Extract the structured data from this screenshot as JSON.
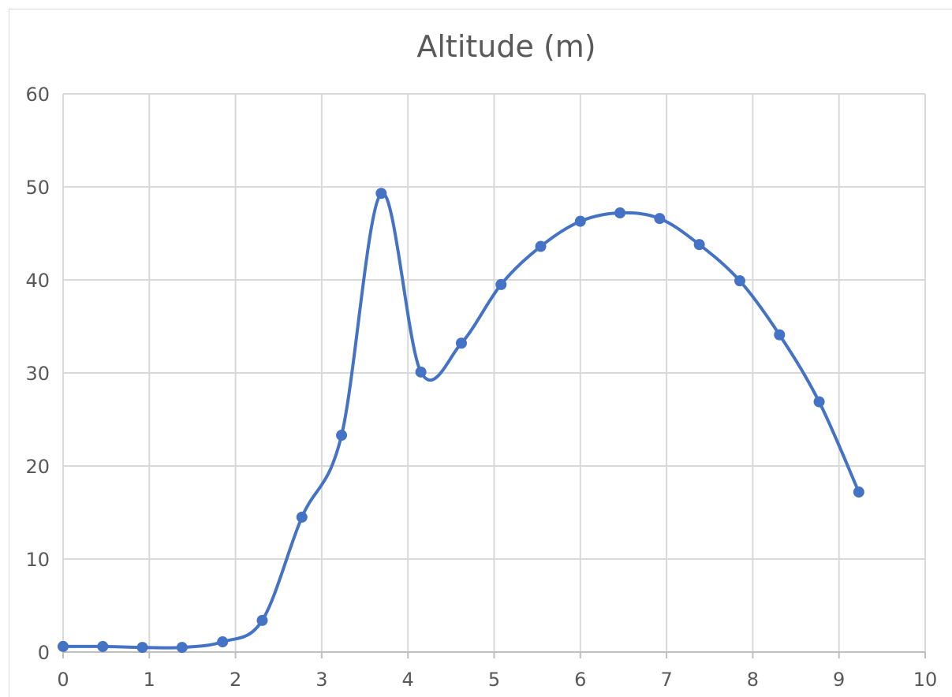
{
  "chart_data": {
    "type": "scatter",
    "title": "Altitude (m)",
    "xlabel": "",
    "ylabel": "",
    "xlim": [
      0,
      10
    ],
    "ylim": [
      0,
      60
    ],
    "x_ticks": [
      0,
      1,
      2,
      3,
      4,
      5,
      6,
      7,
      8,
      9,
      10
    ],
    "y_ticks": [
      0,
      10,
      20,
      30,
      40,
      50,
      60
    ],
    "grid": true,
    "legend": "none",
    "smooth_line": true,
    "markers": true,
    "series": [
      {
        "color": "#4472c4",
        "x": [
          0,
          0.46,
          0.92,
          1.38,
          1.85,
          2.31,
          2.77,
          3.23,
          3.69,
          4.15,
          4.62,
          5.08,
          5.54,
          6.0,
          6.46,
          6.92,
          7.38,
          7.85,
          8.31,
          8.77,
          9.23
        ],
        "y": [
          0.6,
          0.6,
          0.5,
          0.5,
          1.1,
          3.4,
          14.5,
          23.3,
          49.3,
          30.1,
          33.2,
          39.5,
          43.6,
          46.3,
          47.2,
          46.6,
          43.8,
          39.9,
          34.1,
          26.9,
          17.2
        ]
      }
    ]
  }
}
